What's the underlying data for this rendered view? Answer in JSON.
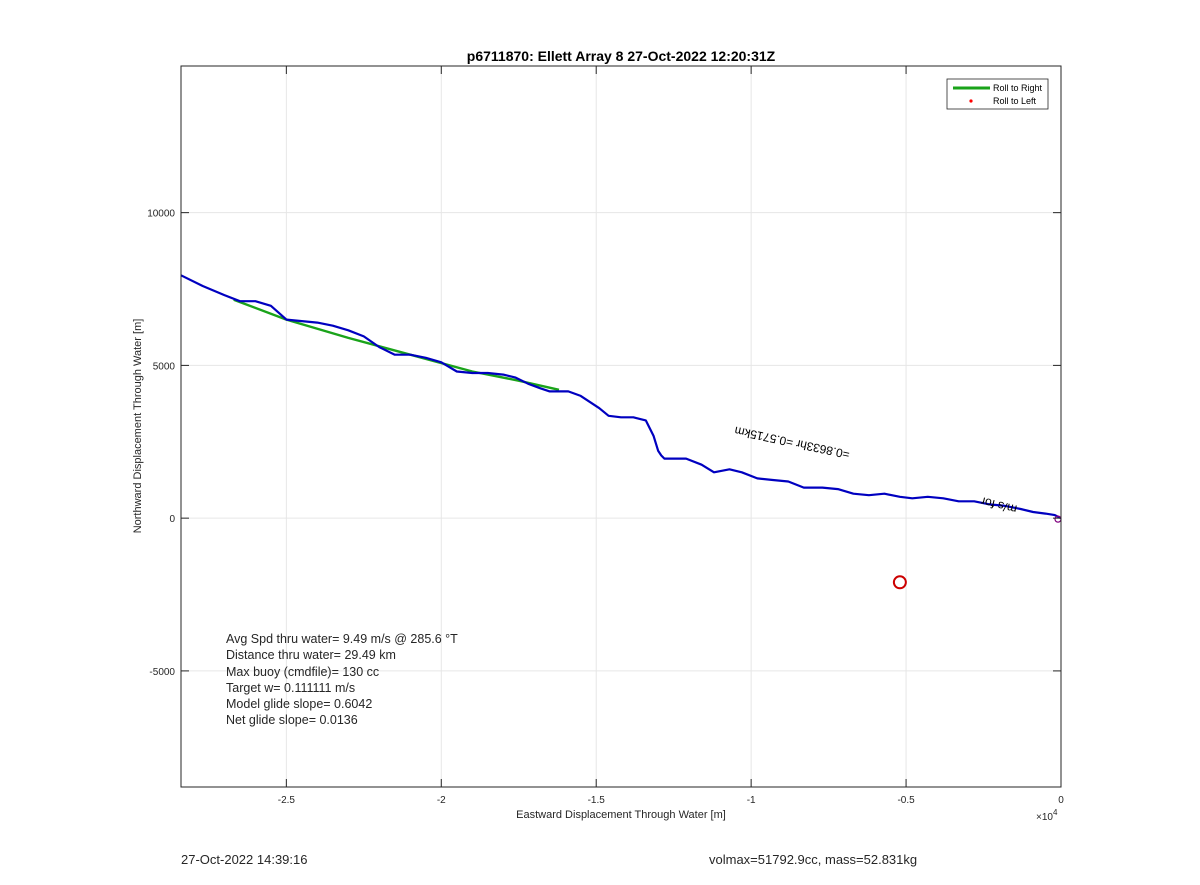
{
  "chart_data": {
    "type": "line",
    "title": "p6711870: Ellett Array 8 27-Oct-2022 12:20:31Z",
    "xlabel": "Eastward Displacement Through Water [m]",
    "ylabel": "Northward Displacement Through Water [m]",
    "x_exponent_label": "×10",
    "x_exponent_power": "4",
    "xlim": [
      -28400,
      0
    ],
    "ylim": [
      -8800,
      14800
    ],
    "x_ticks": [
      -25000,
      -20000,
      -15000,
      -10000,
      -5000,
      0
    ],
    "x_tick_labels": [
      "-2.5",
      "-2",
      "-1.5",
      "-1",
      "-0.5",
      "0"
    ],
    "y_ticks": [
      -5000,
      0,
      5000,
      10000
    ],
    "y_tick_labels": [
      "-5000",
      "0",
      "5000",
      "10000"
    ],
    "grid": true,
    "legend_position": "top-right",
    "legend": [
      {
        "label": "Roll to Right",
        "color": "#1aa31a",
        "marker": "line"
      },
      {
        "label": "Roll to Left",
        "color": "#ff0000",
        "marker": "dot"
      }
    ],
    "series": [
      {
        "name": "Roll to Right",
        "color": "#1aa31a",
        "x": [
          -26700,
          -25000,
          -23000,
          -21000,
          -19000,
          -17500,
          -16200
        ],
        "y": [
          7150,
          6500,
          5900,
          5350,
          4800,
          4500,
          4200
        ]
      },
      {
        "name": "track",
        "color": "#0000c0",
        "x": [
          -28400,
          -27700,
          -27000,
          -26500,
          -26000,
          -25500,
          -25000,
          -24500,
          -24000,
          -23500,
          -23000,
          -22500,
          -22000,
          -21500,
          -21000,
          -20500,
          -20000,
          -19500,
          -19000,
          -18500,
          -18000,
          -17600,
          -17200,
          -16800,
          -16500,
          -16200,
          -15900,
          -15500,
          -15200,
          -14900,
          -14600,
          -14200,
          -13800,
          -13400,
          -13150,
          -13000,
          -12900,
          -12800,
          -12500,
          -12100,
          -11600,
          -11200,
          -10700,
          -10300,
          -9800,
          -9300,
          -8800,
          -8300,
          -7700,
          -7200,
          -6700,
          -6200,
          -5700,
          -5200,
          -4800,
          -4300,
          -3800,
          -3300,
          -2800,
          -2300,
          -1800,
          -1300,
          -900,
          -500,
          -200,
          0
        ],
        "y": [
          7950,
          7600,
          7300,
          7100,
          7100,
          6950,
          6500,
          6450,
          6400,
          6300,
          6150,
          5950,
          5600,
          5350,
          5350,
          5250,
          5100,
          4800,
          4750,
          4750,
          4700,
          4600,
          4400,
          4250,
          4150,
          4150,
          4150,
          4000,
          3800,
          3600,
          3350,
          3300,
          3300,
          3200,
          2700,
          2200,
          2050,
          1950,
          1950,
          1950,
          1750,
          1500,
          1600,
          1500,
          1300,
          1250,
          1200,
          1000,
          1000,
          950,
          800,
          750,
          800,
          700,
          650,
          700,
          650,
          550,
          550,
          450,
          400,
          300,
          200,
          150,
          100,
          0
        ]
      }
    ],
    "annotations": {
      "track_note": "=0.8633hr =0.5715km",
      "current_note": "m/s for",
      "marker": {
        "x": -5200,
        "y": -2100,
        "color": "#cc0000"
      }
    },
    "stats": {
      "line1": "Avg Spd thru water=  9.49 m/s @ 285.6 °T",
      "line2": "Distance thru water= 29.49 km",
      "line3": "Max buoy (cmdfile)= 130 cc",
      "line4": "Target w= 0.111111 m/s",
      "line5": "Model glide slope= 0.6042",
      "line6": "Net glide slope= 0.0136"
    }
  },
  "footer": {
    "left": "27-Oct-2022 14:39:16",
    "right": "volmax=51792.9cc, mass=52.831kg"
  }
}
